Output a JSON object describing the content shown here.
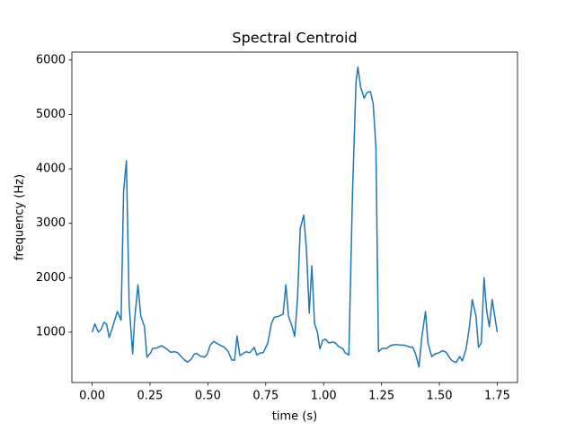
{
  "chart_data": {
    "type": "line",
    "title": "Spectral Centroid",
    "xlabel": "time (s)",
    "ylabel": "frequency (Hz)",
    "color": "#1f77b4",
    "x": [
      0,
      0.012,
      0.027,
      0.039,
      0.051,
      0.062,
      0.074,
      0.089,
      0.109,
      0.125,
      0.136,
      0.148,
      0.16,
      0.175,
      0.183,
      0.198,
      0.21,
      0.226,
      0.237,
      0.253,
      0.261,
      0.28,
      0.3,
      0.319,
      0.339,
      0.358,
      0.37,
      0.385,
      0.401,
      0.412,
      0.428,
      0.44,
      0.451,
      0.467,
      0.486,
      0.498,
      0.51,
      0.525,
      0.537,
      0.553,
      0.572,
      0.588,
      0.603,
      0.615,
      0.626,
      0.638,
      0.65,
      0.665,
      0.681,
      0.7,
      0.712,
      0.728,
      0.739,
      0.759,
      0.774,
      0.786,
      0.805,
      0.825,
      0.837,
      0.848,
      0.864,
      0.875,
      0.887,
      0.899,
      0.914,
      0.926,
      0.938,
      0.949,
      0.961,
      0.973,
      0.984,
      0.996,
      1.008,
      1.023,
      1.039,
      1.051,
      1.066,
      1.082,
      1.093,
      1.109,
      1.125,
      1.14,
      1.148,
      1.16,
      1.175,
      1.187,
      1.202,
      1.214,
      1.226,
      1.237,
      1.253,
      1.272,
      1.288,
      1.304,
      1.319,
      1.335,
      1.35,
      1.37,
      1.385,
      1.397,
      1.412,
      1.424,
      1.44,
      1.451,
      1.467,
      1.482,
      1.498,
      1.514,
      1.529,
      1.541,
      1.553,
      1.572,
      1.588,
      1.599,
      1.615,
      1.63,
      1.642,
      1.658,
      1.669,
      1.681,
      1.693,
      1.704,
      1.716,
      1.728,
      1.739,
      1.75
    ],
    "values": [
      1000,
      1150,
      1000,
      1050,
      1180,
      1150,
      900,
      1100,
      1380,
      1220,
      3600,
      4150,
      1500,
      600,
      1200,
      1870,
      1300,
      1100,
      540,
      620,
      700,
      710,
      750,
      700,
      630,
      640,
      620,
      550,
      480,
      450,
      500,
      590,
      610,
      560,
      540,
      600,
      760,
      830,
      800,
      760,
      720,
      640,
      490,
      480,
      930,
      570,
      600,
      640,
      620,
      720,
      580,
      620,
      620,
      800,
      1150,
      1270,
      1290,
      1330,
      1870,
      1300,
      1100,
      920,
      1600,
      2900,
      3150,
      2500,
      1350,
      2220,
      1150,
      1000,
      690,
      850,
      870,
      800,
      820,
      800,
      730,
      700,
      620,
      580,
      3600,
      5600,
      5870,
      5500,
      5300,
      5400,
      5420,
      5200,
      4400,
      640,
      700,
      700,
      750,
      770,
      770,
      760,
      760,
      730,
      720,
      600,
      360,
      900,
      1380,
      800,
      550,
      600,
      620,
      660,
      630,
      550,
      480,
      440,
      550,
      470,
      680,
      1100,
      1600,
      1300,
      720,
      800,
      2000,
      1400,
      1100,
      1600,
      1300,
      1000
    ],
    "xlim": [
      -0.0875,
      1.8375
    ],
    "ylim": [
      74,
      6146
    ],
    "xticks": [
      {
        "value": 0,
        "label": "0.00"
      },
      {
        "value": 0.25,
        "label": "0.25"
      },
      {
        "value": 0.5,
        "label": "0.50"
      },
      {
        "value": 0.75,
        "label": "0.75"
      },
      {
        "value": 1,
        "label": "1.00"
      },
      {
        "value": 1.25,
        "label": "1.25"
      },
      {
        "value": 1.5,
        "label": "1.50"
      },
      {
        "value": 1.75,
        "label": "1.75"
      }
    ],
    "yticks": [
      1000,
      2000,
      3000,
      4000,
      5000,
      6000
    ],
    "grid": false
  }
}
